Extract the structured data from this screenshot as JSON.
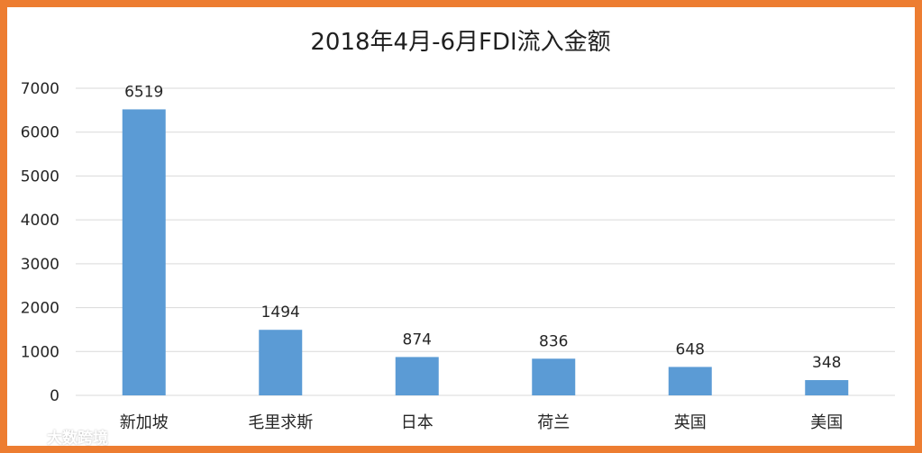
{
  "chart_data": {
    "type": "bar",
    "title": "2018年4月-6月FDI流入金额",
    "categories": [
      "新加坡",
      "毛里求斯",
      "日本",
      "荷兰",
      "英国",
      "美国"
    ],
    "values": [
      6519,
      1494,
      874,
      836,
      648,
      348
    ],
    "ylim": [
      0,
      7000
    ],
    "yticks": [
      "0",
      "1000",
      "2000",
      "3000",
      "4000",
      "5000",
      "6000",
      "7000"
    ],
    "xlabel": "",
    "ylabel": "",
    "grid": true,
    "legend": "none",
    "data_labels": true
  },
  "colors": {
    "bar": "#5B9BD5",
    "grid": "#D9D9D9",
    "frame": "#ED7D31"
  },
  "watermark": {
    "text": "大数跨境",
    "icon": "watermark-logo-icon"
  }
}
